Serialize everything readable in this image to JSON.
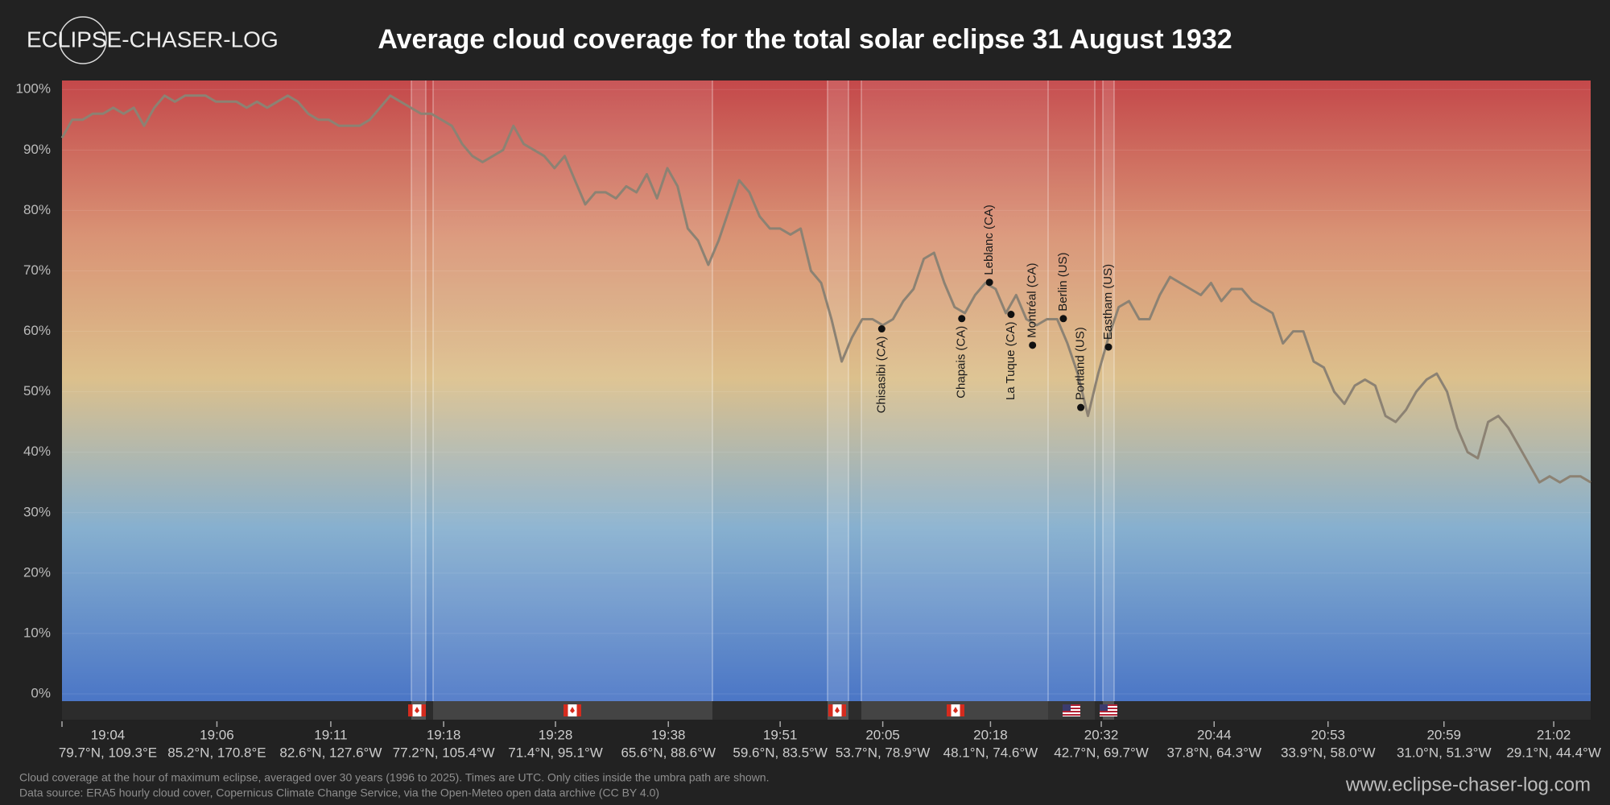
{
  "brand": "ECLIPSE-CHASER-LOG",
  "chart_data": {
    "type": "line",
    "title": "Average cloud coverage for the total solar eclipse 31 August 1932",
    "series": [
      {
        "color": "#8c8273",
        "values": [
          92,
          95,
          95,
          96,
          96,
          97,
          96,
          97,
          94,
          97,
          99,
          98,
          99,
          99,
          99,
          98,
          98,
          98,
          97,
          98,
          97,
          98,
          99,
          98,
          96,
          95,
          95,
          94,
          94,
          94,
          95,
          97,
          99,
          98,
          97,
          96,
          96,
          95,
          94,
          91,
          89,
          88,
          89,
          90,
          94,
          91,
          90,
          89,
          87,
          89,
          85,
          81,
          83,
          83,
          82,
          84,
          83,
          86,
          82,
          87,
          84,
          77,
          75,
          71,
          75,
          80,
          85,
          83,
          79,
          77,
          77,
          76,
          77,
          70,
          68,
          62,
          55,
          59,
          62,
          62,
          61,
          62,
          65,
          67,
          72,
          73,
          68,
          64,
          63,
          66,
          68,
          67,
          63,
          66,
          62,
          61,
          62,
          62,
          58,
          53,
          46,
          53,
          59,
          64,
          65,
          62,
          62,
          66,
          69,
          68,
          67,
          66,
          68,
          65,
          67,
          67,
          65,
          64,
          63,
          58,
          60,
          60,
          55,
          54,
          50,
          48,
          51,
          52,
          51,
          46,
          45,
          47,
          50,
          52,
          53,
          50,
          44,
          40,
          39,
          45,
          46,
          44,
          41,
          38,
          35,
          36,
          35,
          36,
          36,
          35
        ]
      }
    ],
    "xlim": [
      0,
      149
    ],
    "ylim": [
      -1.2,
      101.5
    ],
    "yticks": [
      {
        "value": 0,
        "label": "0%"
      },
      {
        "value": 10,
        "label": "10%"
      },
      {
        "value": 20,
        "label": "20%"
      },
      {
        "value": 30,
        "label": "30%"
      },
      {
        "value": 40,
        "label": "40%"
      },
      {
        "value": 50,
        "label": "50%"
      },
      {
        "value": 60,
        "label": "60%"
      },
      {
        "value": 70,
        "label": "70%"
      },
      {
        "value": 80,
        "label": "80%"
      },
      {
        "value": 90,
        "label": "90%"
      },
      {
        "value": 100,
        "label": "100%"
      }
    ],
    "xticks": [
      {
        "value": 0,
        "label": "19:04",
        "coords": "79.7°N, 109.3°E"
      },
      {
        "value": 15.1,
        "label": "19:06",
        "coords": "85.2°N, 170.8°E"
      },
      {
        "value": 26.2,
        "label": "19:11",
        "coords": "82.6°N, 127.6°W"
      },
      {
        "value": 37.2,
        "label": "19:18",
        "coords": "77.2°N, 105.4°W"
      },
      {
        "value": 48.1,
        "label": "19:28",
        "coords": "71.4°N, 95.1°W"
      },
      {
        "value": 59.1,
        "label": "19:38",
        "coords": "65.6°N, 88.6°W"
      },
      {
        "value": 70.0,
        "label": "19:51",
        "coords": "59.6°N, 83.5°W"
      },
      {
        "value": 80.0,
        "label": "20:05",
        "coords": "53.7°N, 78.9°W"
      },
      {
        "value": 90.5,
        "label": "20:18",
        "coords": "48.1°N, 74.6°W"
      },
      {
        "value": 101.3,
        "label": "20:32",
        "coords": "42.7°N, 69.7°W"
      },
      {
        "value": 112.3,
        "label": "20:44",
        "coords": "37.8°N, 64.3°W"
      },
      {
        "value": 123.4,
        "label": "20:53",
        "coords": "33.9°N, 58.0°W"
      },
      {
        "value": 134.7,
        "label": "20:59",
        "coords": "31.0°N, 51.3°W"
      },
      {
        "value": 145.4,
        "label": "21:02",
        "coords": "29.1°N, 44.4°W"
      }
    ],
    "grid": true,
    "annotations": [
      {
        "label": "Chisasibi (CA)",
        "x": 79.9,
        "value": 60.4,
        "position": "below"
      },
      {
        "label": "Chapais (CA)",
        "x": 87.7,
        "value": 62.1,
        "position": "below"
      },
      {
        "label": "Leblanc (CA)",
        "x": 90.4,
        "value": 68.1,
        "position": "above"
      },
      {
        "label": "La Tuque (CA)",
        "x": 92.5,
        "value": 62.8,
        "position": "below"
      },
      {
        "label": "Montréal (CA)",
        "x": 94.6,
        "value": 57.7,
        "position": "above"
      },
      {
        "label": "Berlin (US)",
        "x": 97.6,
        "value": 62.1,
        "position": "above"
      },
      {
        "label": "Portland (US)",
        "x": 99.3,
        "value": 47.4,
        "position": "above"
      },
      {
        "label": "Eastham (US)",
        "x": 102.0,
        "value": 57.4,
        "position": "above"
      }
    ]
  },
  "footnotes": [
    "Cloud coverage at the hour of maximum eclipse, averaged over 30 years (1996 to 2025). Times are UTC. Only cities inside the umbra path are shown.",
    "Data source: ERA5 hourly cloud cover, Copernicus Climate Change Service, via the Open-Meteo open data archive (CC BY 4.0)"
  ],
  "url": "www.eclipse-chaser-log.com"
}
